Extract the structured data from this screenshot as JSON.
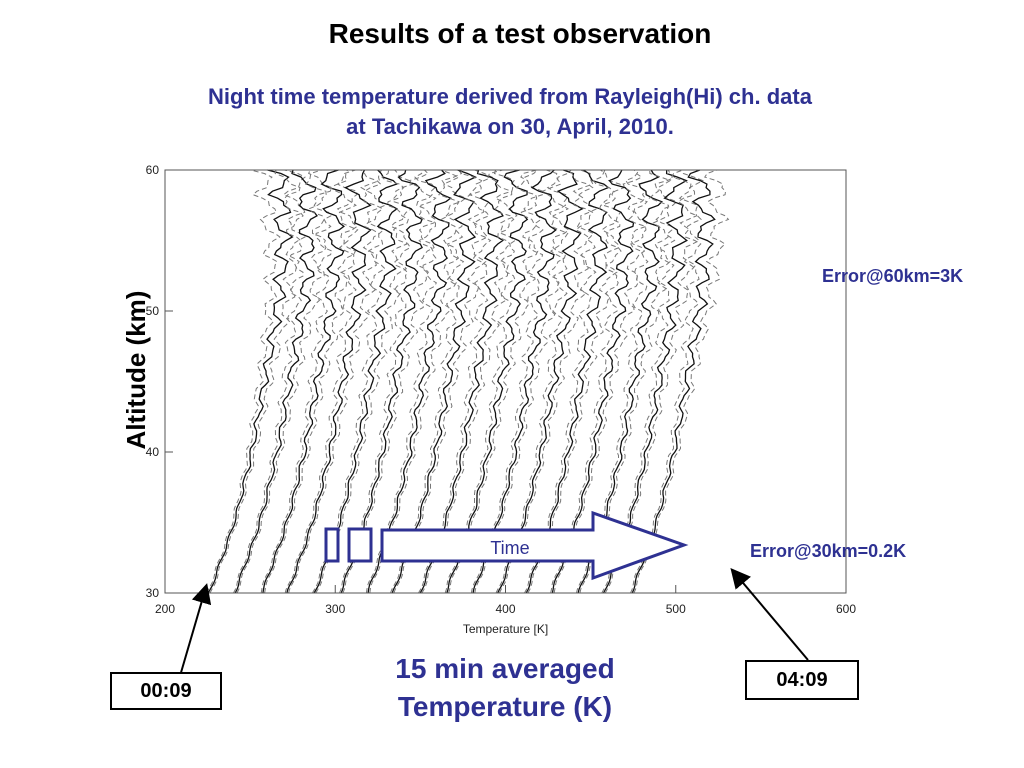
{
  "slide": {
    "title": "Results of a test observation",
    "subtitle_line1": "Night time temperature derived from Rayleigh(Hi) ch. data",
    "subtitle_line2": "at Tachikawa on 30, April, 2010.",
    "error_60km": "Error@60km=3K",
    "error_30km": "Error@30km=0.2K",
    "avg_line1": "15 min averaged",
    "avg_line2": "Temperature (K)",
    "start_time": "00:09",
    "end_time": "04:09",
    "time_arrow_label": "Time",
    "y_axis_title": "Altitude (km)",
    "accent_color": "#2e3192"
  },
  "chart_data": {
    "type": "line",
    "xlabel": "Temperature [K]",
    "xlim": [
      200,
      600
    ],
    "ylim": [
      30,
      60
    ],
    "x_ticks": [
      200,
      300,
      400,
      500,
      600
    ],
    "y_ticks": [
      30,
      40,
      50,
      60
    ],
    "series_style": "solid profile with dashed error bounds",
    "profile_count": 17,
    "profile_base_temperature_at_30km": [
      226,
      241,
      257,
      272,
      288,
      303,
      319,
      334,
      350,
      365,
      381,
      396,
      412,
      427,
      443,
      458,
      474
    ],
    "profile_offset_step_K": 15.5,
    "reference_profile": {
      "altitude_km": [
        30,
        32,
        34,
        36,
        38,
        40,
        42,
        44,
        46,
        48,
        50,
        52,
        54,
        56,
        58,
        60
      ],
      "temperature_K": [
        226,
        232,
        238,
        243,
        247,
        251,
        254,
        257,
        260,
        263,
        266,
        268,
        269,
        269,
        268,
        266
      ]
    },
    "first_profile_time": "00:09",
    "last_profile_time": "04:09"
  }
}
